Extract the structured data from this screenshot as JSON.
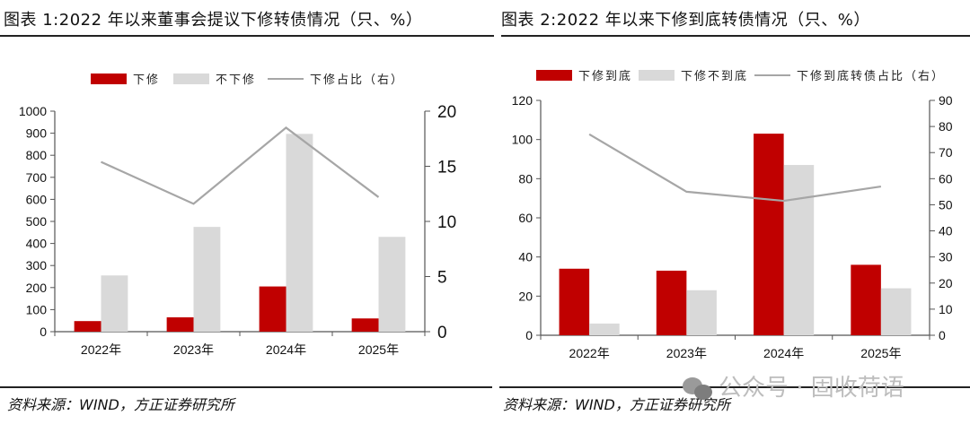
{
  "titles": [
    "图表 1:2022 年以来董事会提议下修转债情况（只、%）",
    "图表 2:2022 年以来下修到底转债情况（只、%）"
  ],
  "sources": [
    "资料来源：WIND，方正证券研究所",
    "资料来源：WIND，方正证券研究所"
  ],
  "watermark": "公众号 · 固收荷语",
  "colors": {
    "red": "#c00000",
    "gray": "#d9d9d9",
    "line": "#a6a6a6"
  },
  "chart_data": [
    {
      "type": "bar",
      "title": "图表 1:2022 年以来董事会提议下修转债情况（只、%）",
      "categories": [
        "2022年",
        "2023年",
        "2024年",
        "2025年"
      ],
      "series": [
        {
          "name": "下修",
          "kind": "bar",
          "axis": "left",
          "values": [
            48,
            65,
            205,
            60
          ]
        },
        {
          "name": "不下修",
          "kind": "bar",
          "axis": "left",
          "values": [
            255,
            475,
            897,
            430
          ]
        },
        {
          "name": "下修占比（右）",
          "kind": "line",
          "axis": "right",
          "values": [
            15.4,
            11.6,
            18.5,
            12.2
          ]
        }
      ],
      "ylim": [
        0,
        1000
      ],
      "yticks": [
        0,
        100,
        200,
        300,
        400,
        500,
        600,
        700,
        800,
        900,
        1000
      ],
      "y2lim": [
        0,
        20
      ],
      "y2ticks": [
        0,
        5,
        10,
        15,
        20
      ],
      "legend": "top"
    },
    {
      "type": "bar",
      "title": "图表 2:2022 年以来下修到底转债情况（只、%）",
      "categories": [
        "2022年",
        "2023年",
        "2024年",
        "2025年"
      ],
      "series": [
        {
          "name": "下修到底",
          "kind": "bar",
          "axis": "left",
          "values": [
            34,
            33,
            103,
            36
          ]
        },
        {
          "name": "下修不到底",
          "kind": "bar",
          "axis": "left",
          "values": [
            6,
            23,
            87,
            24
          ]
        },
        {
          "name": "下修到底转债占比（右）",
          "kind": "line",
          "axis": "right",
          "values": [
            77,
            55,
            51.5,
            57
          ]
        }
      ],
      "ylim": [
        0,
        120
      ],
      "yticks": [
        0,
        20,
        40,
        60,
        80,
        100,
        120
      ],
      "y2lim": [
        0,
        90
      ],
      "y2ticks": [
        0,
        10,
        20,
        30,
        40,
        50,
        60,
        70,
        80,
        90
      ],
      "legend": "top"
    }
  ]
}
